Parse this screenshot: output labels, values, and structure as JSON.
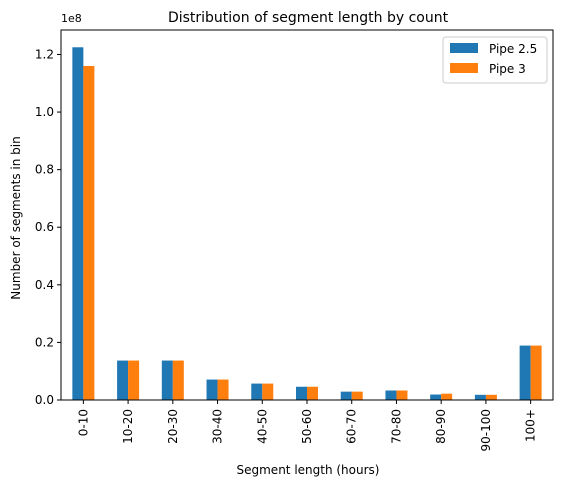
{
  "chart_data": {
    "type": "bar",
    "title": "Distribution of segment length by count",
    "xlabel": "Segment length (hours)",
    "ylabel": "Number of segments in bin",
    "offset_text": "1e8",
    "categories": [
      "0-10",
      "10-20",
      "20-30",
      "30-40",
      "40-50",
      "50-60",
      "60-70",
      "70-80",
      "80-90",
      "90-100",
      "100+"
    ],
    "series": [
      {
        "name": "Pipe 2.5",
        "color": "#1f77b4",
        "values": [
          1.225,
          0.137,
          0.137,
          0.071,
          0.057,
          0.046,
          0.029,
          0.033,
          0.019,
          0.018,
          0.189
        ]
      },
      {
        "name": "Pipe 3",
        "color": "#ff7f0e",
        "values": [
          1.16,
          0.137,
          0.137,
          0.071,
          0.057,
          0.046,
          0.029,
          0.033,
          0.022,
          0.018,
          0.189
        ]
      }
    ],
    "yticks": [
      "0.0",
      "0.2",
      "0.4",
      "0.6",
      "0.8",
      "1.0",
      "1.2"
    ],
    "ylim": [
      0,
      1.285
    ],
    "grid": false,
    "legend_position": "top-right"
  }
}
